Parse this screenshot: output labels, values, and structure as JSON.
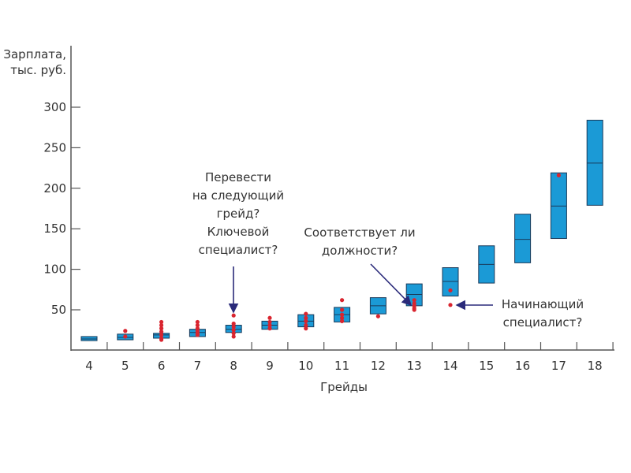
{
  "chart_data": {
    "type": "box",
    "title": "",
    "xlabel": "Грейды",
    "ylabel": [
      "Зарплата,",
      "тыс. руб."
    ],
    "ylim": [
      0,
      310
    ],
    "yticks": [
      50,
      100,
      150,
      200,
      250,
      300
    ],
    "categories": [
      "4",
      "5",
      "6",
      "7",
      "8",
      "9",
      "10",
      "11",
      "12",
      "13",
      "14",
      "15",
      "16",
      "17",
      "18"
    ],
    "boxes": [
      {
        "grade": "4",
        "low": 12,
        "median": 14,
        "high": 17
      },
      {
        "grade": "5",
        "low": 13,
        "median": 16,
        "high": 20
      },
      {
        "grade": "6",
        "low": 15,
        "median": 19,
        "high": 21
      },
      {
        "grade": "7",
        "low": 17,
        "median": 22,
        "high": 26
      },
      {
        "grade": "8",
        "low": 22,
        "median": 26,
        "high": 31
      },
      {
        "grade": "9",
        "low": 26,
        "median": 31,
        "high": 36
      },
      {
        "grade": "10",
        "low": 29,
        "median": 36,
        "high": 44
      },
      {
        "grade": "11",
        "low": 35,
        "median": 44,
        "high": 53
      },
      {
        "grade": "12",
        "low": 45,
        "median": 55,
        "high": 65
      },
      {
        "grade": "13",
        "low": 55,
        "median": 69,
        "high": 82
      },
      {
        "grade": "14",
        "low": 67,
        "median": 85,
        "high": 102
      },
      {
        "grade": "15",
        "low": 83,
        "median": 106,
        "high": 129
      },
      {
        "grade": "16",
        "low": 108,
        "median": 137,
        "high": 168
      },
      {
        "grade": "17",
        "low": 138,
        "median": 178,
        "high": 219
      },
      {
        "grade": "18",
        "low": 179,
        "median": 231,
        "high": 284
      }
    ],
    "points": [
      {
        "grade": "5",
        "values": [
          24,
          17
        ]
      },
      {
        "grade": "6",
        "values": [
          35,
          31,
          27,
          23,
          19,
          15,
          13
        ]
      },
      {
        "grade": "7",
        "values": [
          35,
          31,
          27,
          24,
          21,
          19
        ]
      },
      {
        "grade": "8",
        "values": [
          43,
          33,
          29,
          25,
          21,
          17
        ]
      },
      {
        "grade": "9",
        "values": [
          40,
          35,
          31,
          27
        ]
      },
      {
        "grade": "10",
        "values": [
          45,
          40,
          36,
          31,
          27
        ]
      },
      {
        "grade": "11",
        "values": [
          62,
          50,
          44,
          40,
          36
        ]
      },
      {
        "grade": "12",
        "values": [
          42
        ]
      },
      {
        "grade": "13",
        "values": [
          62,
          58,
          55,
          52,
          50
        ]
      },
      {
        "grade": "14",
        "values": [
          74,
          56
        ]
      },
      {
        "grade": "17",
        "values": [
          216
        ]
      }
    ],
    "colors": {
      "box": "#1b9ad6",
      "box_stroke": "#1a3a5a",
      "point": "#d9252f",
      "arrow": "#2a2a7a",
      "axis": "#555555"
    },
    "annotations": [
      {
        "lines": [
          "Перевести",
          "на следующий",
          "грейд?",
          "Ключевой",
          "специалист?"
        ],
        "target_grade": "8"
      },
      {
        "lines": [
          "Соответствует ли",
          "должности?"
        ],
        "target_grade": "13"
      },
      {
        "lines": [
          "Начинающий",
          "специалист?"
        ],
        "target_grade": "14"
      }
    ]
  }
}
